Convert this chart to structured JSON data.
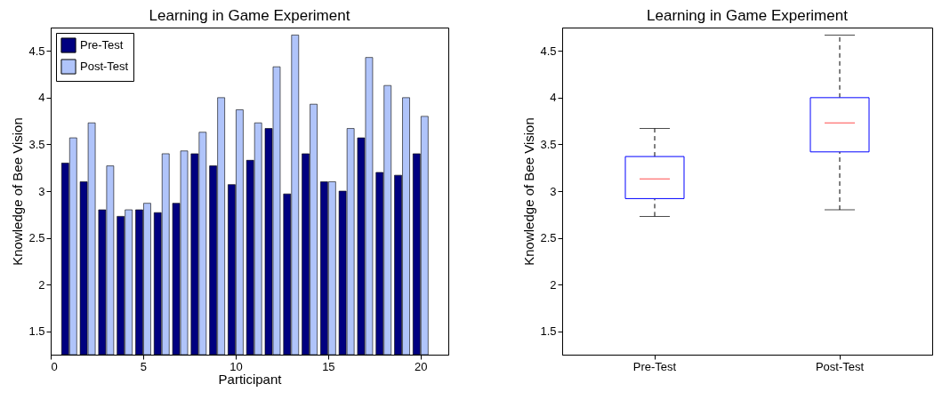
{
  "chart_data": [
    {
      "type": "bar",
      "title": "Learning in Game Experiment",
      "xlabel": "Participant",
      "ylabel": "Knowledge of Bee Vision",
      "x": [
        1,
        2,
        3,
        4,
        5,
        6,
        7,
        8,
        9,
        10,
        11,
        12,
        13,
        14,
        15,
        16,
        17,
        18,
        19,
        20
      ],
      "series": [
        {
          "name": "Pre-Test",
          "color": "#000080",
          "values": [
            3.3,
            3.1,
            2.8,
            2.73,
            2.8,
            2.77,
            2.87,
            3.4,
            3.27,
            3.07,
            3.33,
            3.67,
            2.97,
            3.4,
            3.1,
            3.0,
            3.57,
            3.2,
            3.17,
            3.4
          ]
        },
        {
          "name": "Post-Test",
          "color": "#b0c4fa",
          "values": [
            3.57,
            3.73,
            3.27,
            2.8,
            2.87,
            3.4,
            3.43,
            3.63,
            4.0,
            3.87,
            3.73,
            4.33,
            4.67,
            3.93,
            3.1,
            3.67,
            4.43,
            4.13,
            4.0,
            3.8
          ]
        }
      ],
      "xlim": [
        0,
        21.5
      ],
      "xticks": [
        0,
        5,
        10,
        15,
        20
      ],
      "ylim": [
        1.25,
        4.75
      ],
      "yticks": [
        1.5,
        2,
        2.5,
        3,
        3.5,
        4,
        4.5
      ],
      "legend": "top left"
    },
    {
      "type": "box",
      "title": "Learning in Game Experiment",
      "ylabel": "Knowledge of Bee Vision",
      "categories": [
        "Pre-Test",
        "Post-Test"
      ],
      "series": [
        {
          "color": "#0000ff",
          "boxes": [
            {
              "low": 2.73,
              "q1": 2.92,
              "median": 3.13,
              "q3": 3.37,
              "high": 3.67
            },
            {
              "low": 2.8,
              "q1": 3.42,
              "median": 3.73,
              "q3": 4.0,
              "high": 4.67
            }
          ]
        }
      ],
      "ylim": [
        1.25,
        4.75
      ],
      "yticks": [
        1.5,
        2,
        2.5,
        3,
        3.5,
        4,
        4.5
      ],
      "line_style": "dashed"
    }
  ]
}
